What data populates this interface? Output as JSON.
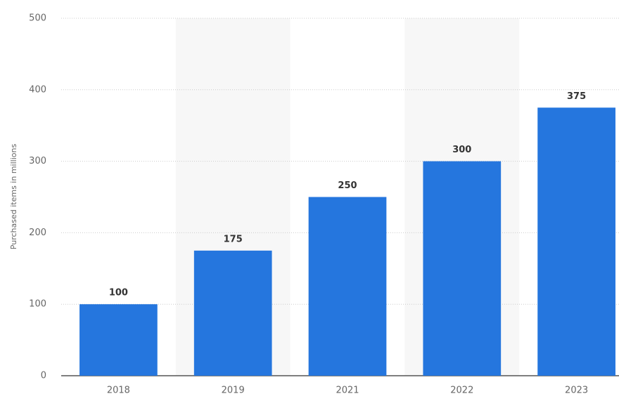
{
  "chart_data": {
    "type": "bar",
    "y_label": "Purchased items in millions",
    "categories": [
      "2018",
      "2019",
      "2021",
      "2022",
      "2023"
    ],
    "values": [
      100,
      175,
      250,
      300,
      375
    ],
    "color": "#2576de",
    "ylim": [
      0,
      500
    ],
    "yticks": [
      0,
      100,
      200,
      300,
      400,
      500
    ],
    "grid": true
  }
}
